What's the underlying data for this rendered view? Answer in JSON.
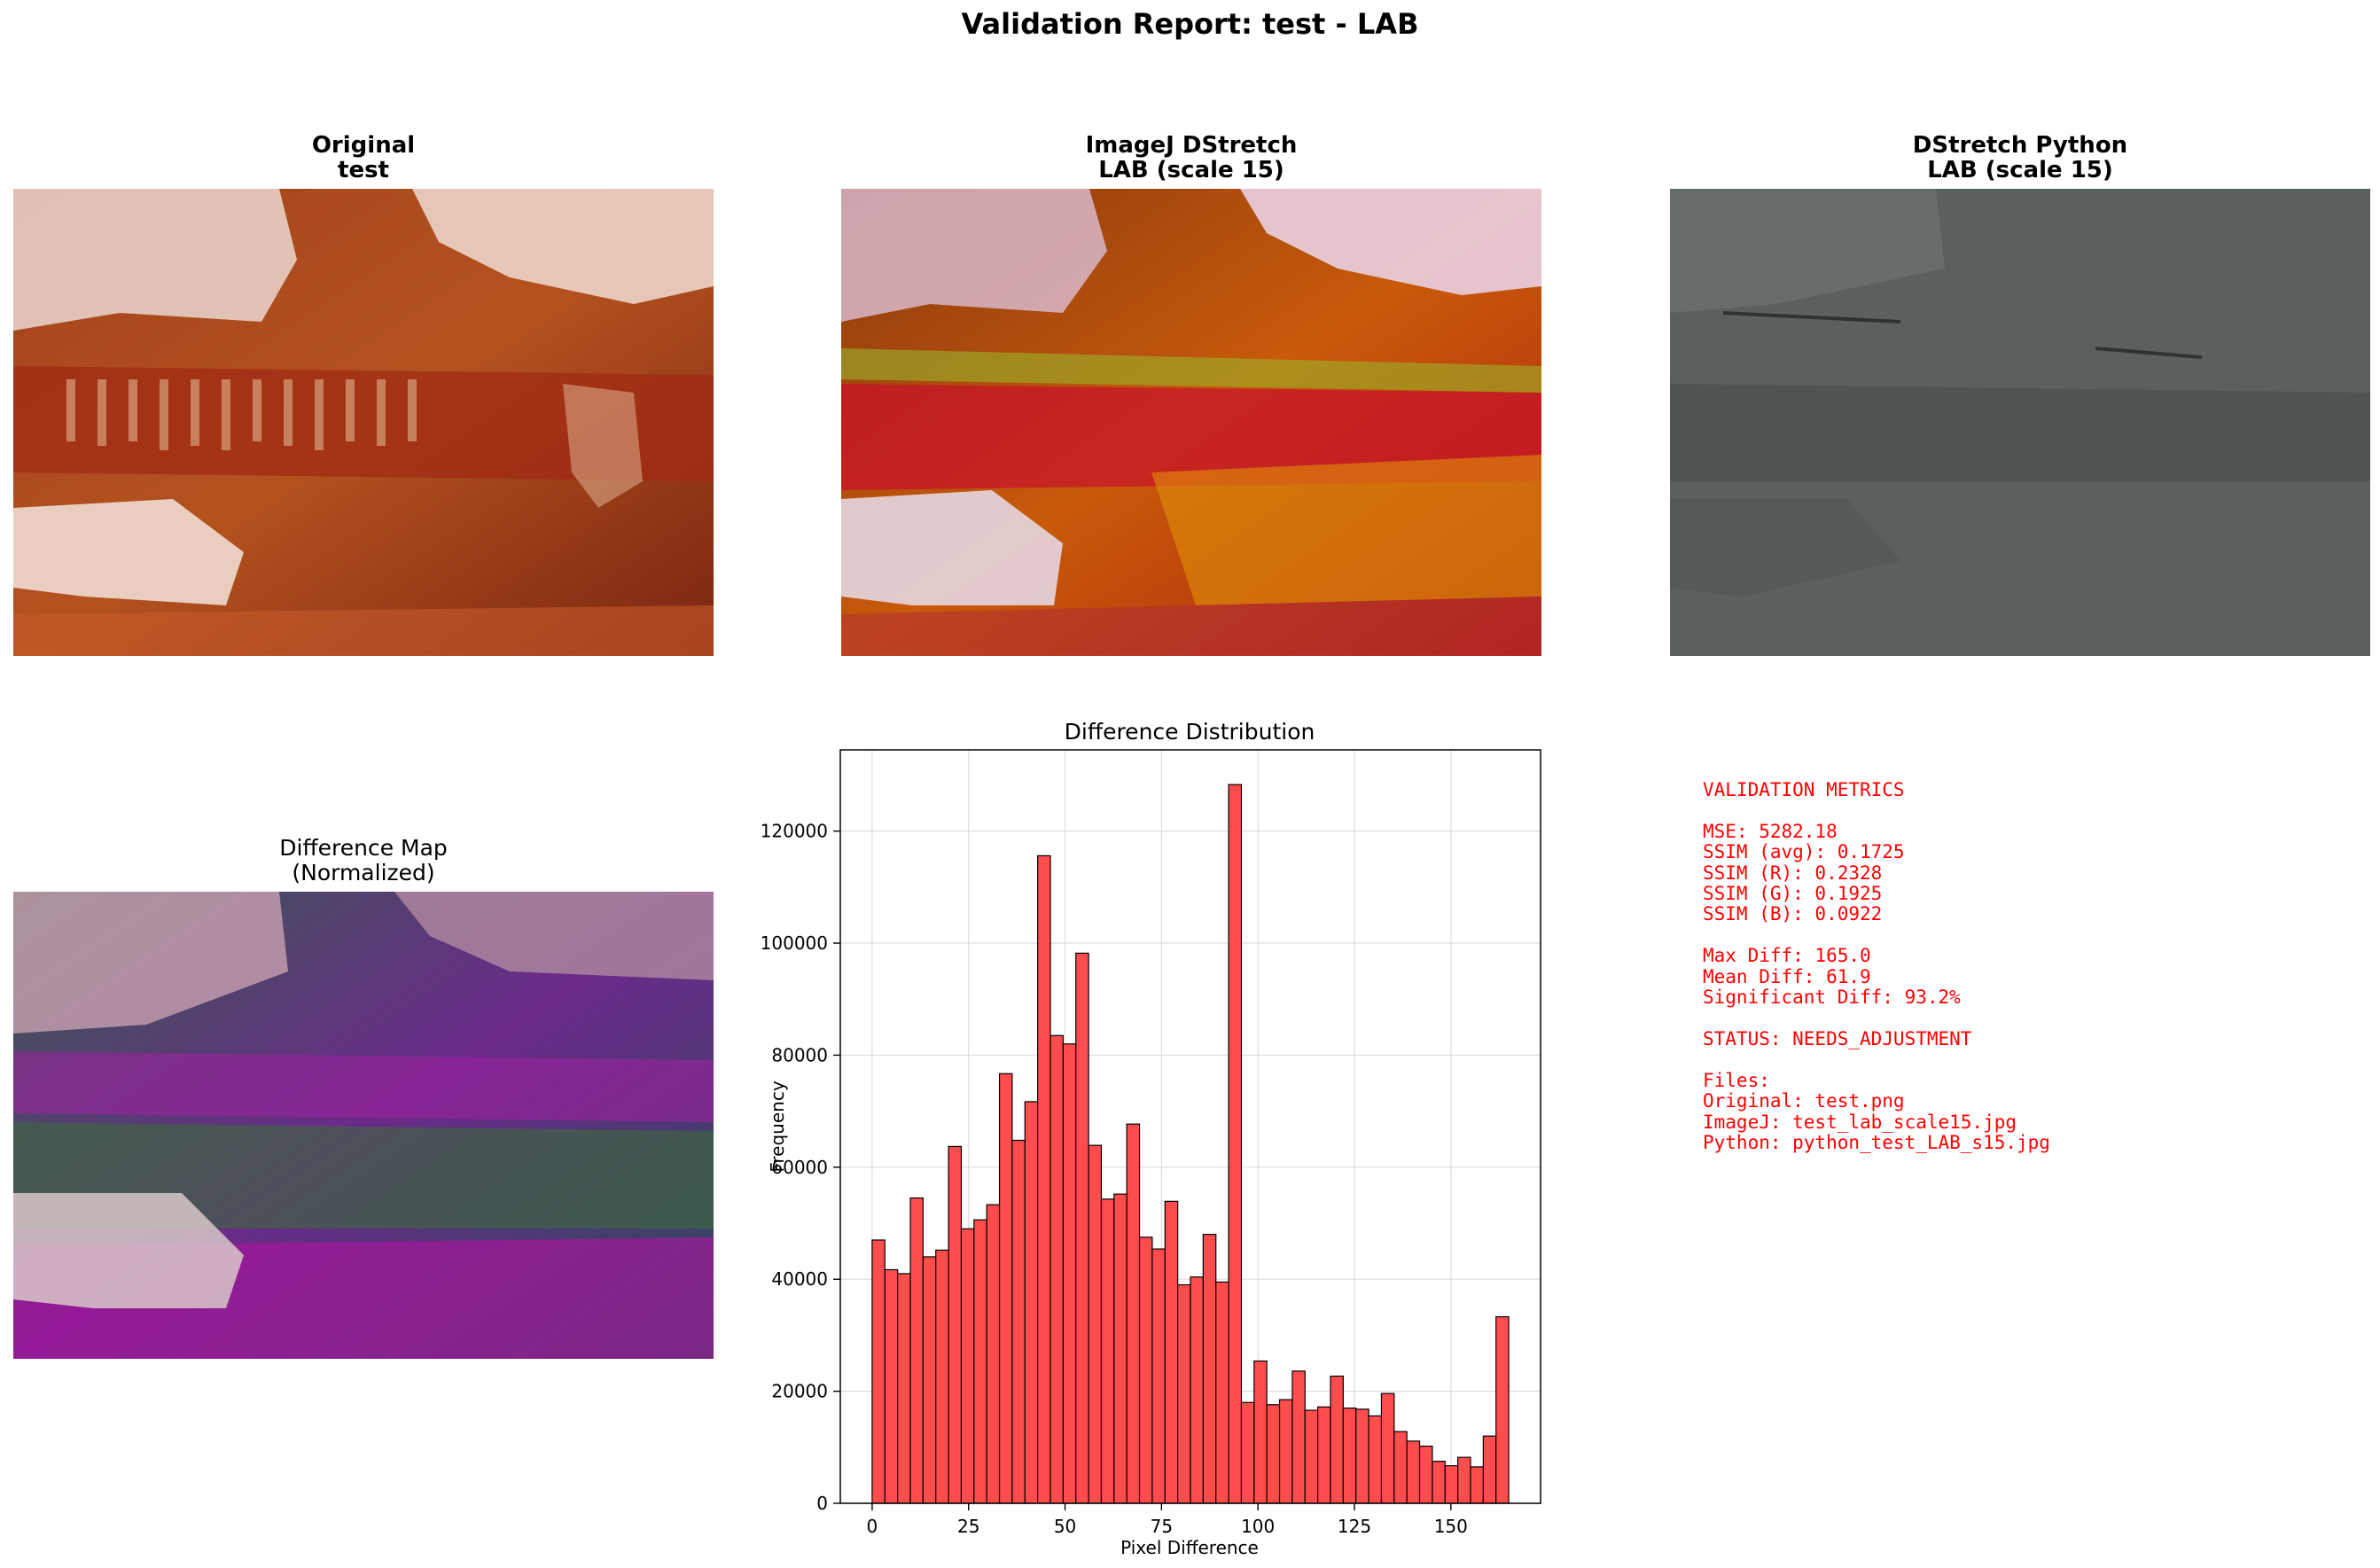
{
  "suptitle": "Validation Report: test - LAB",
  "panels": {
    "original": {
      "title_line1": "Original",
      "title_line2": "test"
    },
    "imagej": {
      "title_line1": "ImageJ DStretch",
      "title_line2": "LAB (scale 15)"
    },
    "python": {
      "title_line1": "DStretch Python",
      "title_line2": "LAB (scale 15)"
    },
    "diffmap": {
      "title_line1": "Difference Map",
      "title_line2": "(Normalized)"
    }
  },
  "chart_data": {
    "type": "bar",
    "title": "Difference Distribution",
    "xlabel": "Pixel Difference",
    "ylabel": "Frequency",
    "xlim": [
      -8.25,
      173.25
    ],
    "ylim": [
      0,
      134500
    ],
    "xticks": [
      0,
      25,
      50,
      75,
      100,
      125,
      150
    ],
    "yticks": [
      0,
      20000,
      40000,
      60000,
      80000,
      100000,
      120000
    ],
    "grid": true,
    "bar_color": "#ff0000",
    "bin_edges": [
      0,
      3.3,
      6.6,
      9.9,
      13.2,
      16.5,
      19.8,
      23.1,
      26.4,
      29.7,
      33,
      36.3,
      39.6,
      42.9,
      46.2,
      49.5,
      52.8,
      56.1,
      59.4,
      62.7,
      66,
      69.3,
      72.6,
      75.9,
      79.2,
      82.5,
      85.8,
      89.1,
      92.4,
      95.7,
      99,
      102.3,
      105.6,
      108.9,
      112.2,
      115.5,
      118.8,
      122.1,
      125.4,
      128.7,
      132,
      135.3,
      138.6,
      141.9,
      145.2,
      148.5,
      151.8,
      155.1,
      158.4,
      161.7,
      165
    ],
    "values": [
      47000,
      41700,
      41000,
      54500,
      44000,
      45200,
      63700,
      49000,
      50600,
      53300,
      76700,
      64800,
      71700,
      115600,
      83500,
      82000,
      98200,
      63900,
      54300,
      55200,
      67700,
      47500,
      45400,
      53900,
      39000,
      40400,
      48000,
      39500,
      128300,
      18000,
      25400,
      17600,
      18500,
      23600,
      16600,
      17200,
      22700,
      17000,
      16800,
      15600,
      19600,
      12800,
      11100,
      10200,
      7500,
      6700,
      8200,
      6500,
      12000,
      33300
    ]
  },
  "metrics": {
    "header": "VALIDATION METRICS",
    "mse": "MSE: 5282.18",
    "ssim_avg": "SSIM (avg): 0.1725",
    "ssim_r": "SSIM (R): 0.2328",
    "ssim_g": "SSIM (G): 0.1925",
    "ssim_b": "SSIM (B): 0.0922",
    "max_diff": "Max Diff: 165.0",
    "mean_diff": "Mean Diff: 61.9",
    "significant": "Significant Diff: 93.2%",
    "status": "STATUS: NEEDS_ADJUSTMENT",
    "files_header": "Files:",
    "file_original": "Original: test.png",
    "file_imagej": "ImageJ: test_lab_scale15.jpg",
    "file_python": "Python: python_test_LAB_s15.jpg"
  },
  "colors": {
    "metrics_text": "#ff0000",
    "bar_fill": "#ff4d4d",
    "bar_edge": "#000000"
  }
}
